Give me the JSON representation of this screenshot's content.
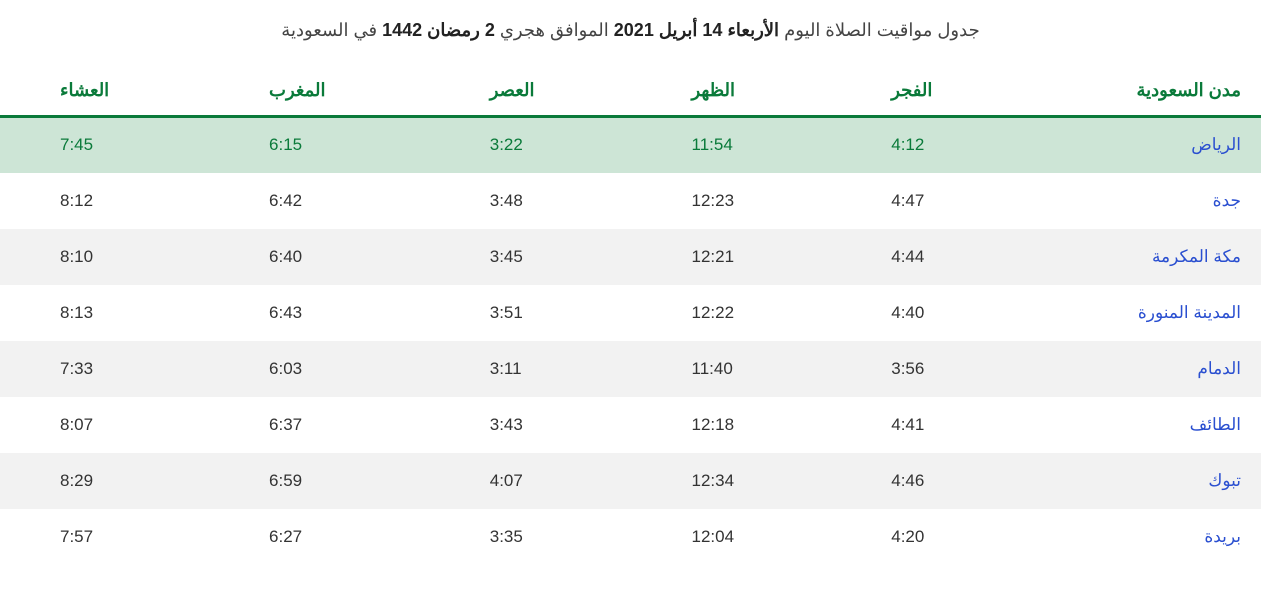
{
  "title": {
    "prefix": "جدول مواقيت الصلاة اليوم ",
    "date_bold": "الأربعاء 14 أبريل 2021",
    "middle": " الموافق هجري ",
    "hijri_bold": "2 رمضان 1442",
    "suffix": " في السعودية"
  },
  "headers": {
    "city": "مدن السعودية",
    "fajr": "الفجر",
    "dhuhr": "الظهر",
    "asr": "العصر",
    "maghrib": "المغرب",
    "isha": "العشاء"
  },
  "rows": [
    {
      "city": "الرياض",
      "fajr": "4:12",
      "dhuhr": "11:54",
      "asr": "3:22",
      "maghrib": "6:15",
      "isha": "7:45",
      "highlight": true
    },
    {
      "city": "جدة",
      "fajr": "4:47",
      "dhuhr": "12:23",
      "asr": "3:48",
      "maghrib": "6:42",
      "isha": "8:12",
      "highlight": false
    },
    {
      "city": "مكة المكرمة",
      "fajr": "4:44",
      "dhuhr": "12:21",
      "asr": "3:45",
      "maghrib": "6:40",
      "isha": "8:10",
      "highlight": false
    },
    {
      "city": "المدينة المنورة",
      "fajr": "4:40",
      "dhuhr": "12:22",
      "asr": "3:51",
      "maghrib": "6:43",
      "isha": "8:13",
      "highlight": false
    },
    {
      "city": "الدمام",
      "fajr": "3:56",
      "dhuhr": "11:40",
      "asr": "3:11",
      "maghrib": "6:03",
      "isha": "7:33",
      "highlight": false
    },
    {
      "city": "الطائف",
      "fajr": "4:41",
      "dhuhr": "12:18",
      "asr": "3:43",
      "maghrib": "6:37",
      "isha": "8:07",
      "highlight": false
    },
    {
      "city": "تبوك",
      "fajr": "4:46",
      "dhuhr": "12:34",
      "asr": "4:07",
      "maghrib": "6:59",
      "isha": "8:29",
      "highlight": false
    },
    {
      "city": "بريدة",
      "fajr": "4:20",
      "dhuhr": "12:04",
      "asr": "3:35",
      "maghrib": "6:27",
      "isha": "7:57",
      "highlight": false
    }
  ],
  "styling": {
    "header_color": "#0a7a3a",
    "header_border_color": "#0a7a3a",
    "city_link_color": "#2a4fd0",
    "highlight_row_bg": "#cde5d6",
    "alt_row_bg": "#f2f2f2",
    "body_bg": "#ffffff",
    "title_color": "#444444",
    "time_color": "#333333",
    "font_size_title": 18,
    "font_size_header": 18,
    "font_size_cell": 17
  }
}
